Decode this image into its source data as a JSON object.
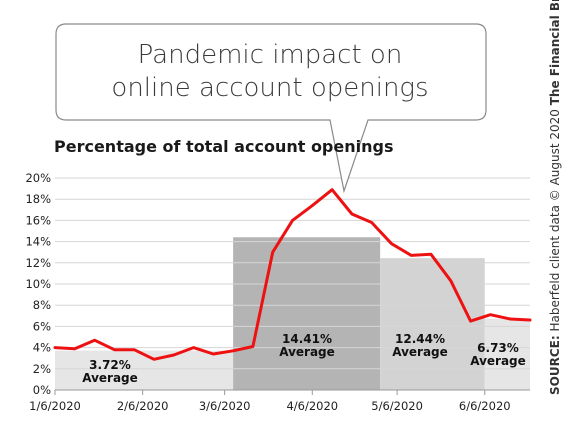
{
  "callout": {
    "line1": "Pandemic impact on",
    "line2": "online account openings"
  },
  "subtitle": "Percentage of total account openings",
  "source": {
    "label": "SOURCE:",
    "text": " Haberfeld client data © August 2020 ",
    "brand": "The Financial Brand"
  },
  "averages": [
    {
      "value": "3.72%",
      "label": "Average"
    },
    {
      "value": "14.41%",
      "label": "Average"
    },
    {
      "value": "12.44%",
      "label": "Average"
    },
    {
      "value": "6.73%",
      "label": "Average"
    }
  ],
  "colors": {
    "line": "#ee1111",
    "band_light": "#e6e6e6",
    "band_dark": "#b4b4b4",
    "band_mid": "#d3d3d3",
    "grid": "#d6d6d6"
  },
  "chart_data": {
    "type": "line",
    "title": "Pandemic impact on online account openings",
    "ylabel": "Percentage of total account openings",
    "ylim": [
      0,
      20
    ],
    "yticks": [
      "0%",
      "2%",
      "4%",
      "6%",
      "8%",
      "10%",
      "12%",
      "14%",
      "16%",
      "18%",
      "20%"
    ],
    "xticks": [
      "1/6/2020",
      "2/6/2020",
      "3/6/2020",
      "4/6/2020",
      "5/6/2020",
      "6/6/2020"
    ],
    "x": [
      "2020-01-06",
      "2020-01-13",
      "2020-01-20",
      "2020-01-27",
      "2020-02-03",
      "2020-02-10",
      "2020-02-17",
      "2020-02-24",
      "2020-03-02",
      "2020-03-09",
      "2020-03-16",
      "2020-03-23",
      "2020-03-30",
      "2020-04-06",
      "2020-04-13",
      "2020-04-20",
      "2020-04-27",
      "2020-05-04",
      "2020-05-11",
      "2020-05-18",
      "2020-05-25",
      "2020-06-01",
      "2020-06-08",
      "2020-06-15",
      "2020-06-22"
    ],
    "values": [
      4.0,
      3.9,
      4.7,
      3.8,
      3.8,
      2.9,
      3.3,
      4.0,
      3.4,
      3.7,
      4.1,
      13.0,
      16.0,
      17.4,
      18.9,
      16.6,
      15.8,
      13.8,
      12.7,
      12.8,
      10.3,
      6.5,
      7.1,
      6.7,
      6.6
    ],
    "averages": [
      {
        "value": 3.72,
        "from": "2020-01-06",
        "to": "2020-03-09"
      },
      {
        "value": 14.41,
        "from": "2020-03-09",
        "to": "2020-04-30"
      },
      {
        "value": 12.44,
        "from": "2020-04-30",
        "to": "2020-06-06"
      },
      {
        "value": 6.73,
        "from": "2020-06-06",
        "to": "2020-06-22"
      }
    ]
  }
}
